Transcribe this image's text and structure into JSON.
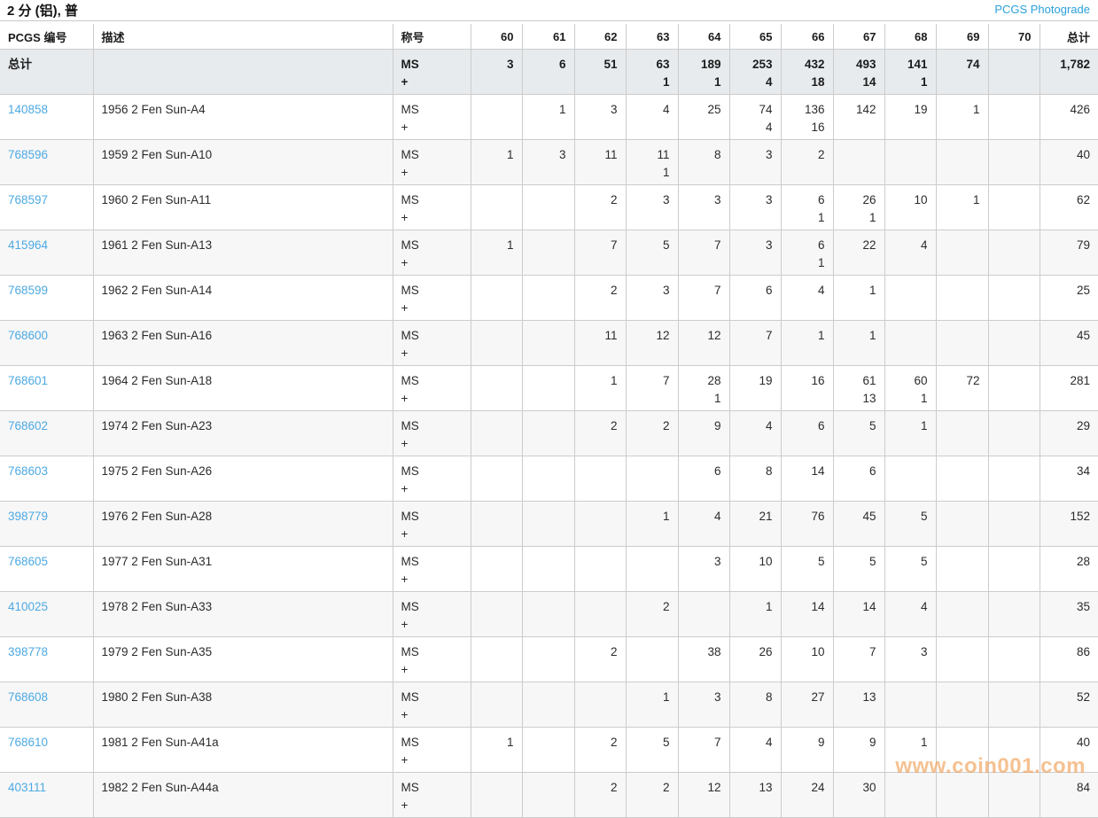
{
  "title": "2 分 (铝), 普",
  "photograde_link": "PCGS Photograde",
  "watermark": "www.coin001.com",
  "colors": {
    "link_blue": "#4da9e2",
    "photograde_blue": "#2ba0da",
    "totals_row_bg": "#e7ebee",
    "alt_row_bg": "#f7f7f8",
    "border": "#cccccc",
    "watermark_orange": "#f09c4e"
  },
  "table": {
    "headers": [
      "PCGS 编号",
      "描述",
      "称号",
      "60",
      "61",
      "62",
      "63",
      "64",
      "65",
      "66",
      "67",
      "68",
      "69",
      "70",
      "总计"
    ],
    "grade_labels": [
      "60",
      "61",
      "62",
      "63",
      "64",
      "65",
      "66",
      "67",
      "68",
      "69",
      "70",
      "total"
    ],
    "totals": {
      "label": "总计",
      "designation_lines": [
        "MS",
        "+"
      ],
      "ms": [
        "3",
        "6",
        "51",
        "63",
        "189",
        "253",
        "432",
        "493",
        "141",
        "74",
        "",
        "1,782"
      ],
      "plus": [
        "",
        "",
        "",
        "1",
        "1",
        "4",
        "18",
        "14",
        "1",
        "",
        "",
        ""
      ]
    },
    "rows": [
      {
        "pcgs_no": "140858",
        "desc": "1956 2 Fen Sun-A4",
        "designation_lines": [
          "MS",
          "+"
        ],
        "ms": [
          "",
          "1",
          "3",
          "4",
          "25",
          "74",
          "136",
          "142",
          "19",
          "1",
          "",
          "426"
        ],
        "plus": [
          "",
          "",
          "",
          "",
          "",
          "4",
          "16",
          "",
          "",
          "",
          "",
          ""
        ]
      },
      {
        "pcgs_no": "768596",
        "desc": "1959 2 Fen Sun-A10",
        "designation_lines": [
          "MS",
          "+"
        ],
        "ms": [
          "1",
          "3",
          "11",
          "11",
          "8",
          "3",
          "2",
          "",
          "",
          "",
          "",
          "40"
        ],
        "plus": [
          "",
          "",
          "",
          "1",
          "",
          "",
          "",
          "",
          "",
          "",
          "",
          ""
        ]
      },
      {
        "pcgs_no": "768597",
        "desc": "1960 2 Fen Sun-A11",
        "designation_lines": [
          "MS",
          "+"
        ],
        "ms": [
          "",
          "",
          "2",
          "3",
          "3",
          "3",
          "6",
          "26",
          "10",
          "1",
          "",
          "62"
        ],
        "plus": [
          "",
          "",
          "",
          "",
          "",
          "",
          "1",
          "1",
          "",
          "",
          "",
          ""
        ]
      },
      {
        "pcgs_no": "415964",
        "desc": "1961 2 Fen Sun-A13",
        "designation_lines": [
          "MS",
          "+"
        ],
        "ms": [
          "1",
          "",
          "7",
          "5",
          "7",
          "3",
          "6",
          "22",
          "4",
          "",
          "",
          "79"
        ],
        "plus": [
          "",
          "",
          "",
          "",
          "",
          "",
          "1",
          "",
          "",
          "",
          "",
          ""
        ]
      },
      {
        "pcgs_no": "768599",
        "desc": "1962 2 Fen Sun-A14",
        "designation_lines": [
          "MS",
          "+"
        ],
        "ms": [
          "",
          "",
          "2",
          "3",
          "7",
          "6",
          "4",
          "1",
          "",
          "",
          "",
          "25"
        ],
        "plus": [
          "",
          "",
          "",
          "",
          "",
          "",
          "",
          "",
          "",
          "",
          "",
          ""
        ]
      },
      {
        "pcgs_no": "768600",
        "desc": "1963 2 Fen Sun-A16",
        "designation_lines": [
          "MS",
          "+"
        ],
        "ms": [
          "",
          "",
          "11",
          "12",
          "12",
          "7",
          "1",
          "1",
          "",
          "",
          "",
          "45"
        ],
        "plus": [
          "",
          "",
          "",
          "",
          "",
          "",
          "",
          "",
          "",
          "",
          "",
          ""
        ]
      },
      {
        "pcgs_no": "768601",
        "desc": "1964 2 Fen Sun-A18",
        "designation_lines": [
          "MS",
          "+"
        ],
        "ms": [
          "",
          "",
          "1",
          "7",
          "28",
          "19",
          "16",
          "61",
          "60",
          "72",
          "",
          "281"
        ],
        "plus": [
          "",
          "",
          "",
          "",
          "1",
          "",
          "",
          "13",
          "1",
          "",
          "",
          ""
        ]
      },
      {
        "pcgs_no": "768602",
        "desc": "1974 2 Fen Sun-A23",
        "designation_lines": [
          "MS",
          "+"
        ],
        "ms": [
          "",
          "",
          "2",
          "2",
          "9",
          "4",
          "6",
          "5",
          "1",
          "",
          "",
          "29"
        ],
        "plus": [
          "",
          "",
          "",
          "",
          "",
          "",
          "",
          "",
          "",
          "",
          "",
          ""
        ]
      },
      {
        "pcgs_no": "768603",
        "desc": "1975 2 Fen Sun-A26",
        "designation_lines": [
          "MS",
          "+"
        ],
        "ms": [
          "",
          "",
          "",
          "",
          "6",
          "8",
          "14",
          "6",
          "",
          "",
          "",
          "34"
        ],
        "plus": [
          "",
          "",
          "",
          "",
          "",
          "",
          "",
          "",
          "",
          "",
          "",
          ""
        ]
      },
      {
        "pcgs_no": "398779",
        "desc": "1976 2 Fen Sun-A28",
        "designation_lines": [
          "MS",
          "+"
        ],
        "ms": [
          "",
          "",
          "",
          "1",
          "4",
          "21",
          "76",
          "45",
          "5",
          "",
          "",
          "152"
        ],
        "plus": [
          "",
          "",
          "",
          "",
          "",
          "",
          "",
          "",
          "",
          "",
          "",
          ""
        ]
      },
      {
        "pcgs_no": "768605",
        "desc": "1977 2 Fen Sun-A31",
        "designation_lines": [
          "MS",
          "+"
        ],
        "ms": [
          "",
          "",
          "",
          "",
          "3",
          "10",
          "5",
          "5",
          "5",
          "",
          "",
          "28"
        ],
        "plus": [
          "",
          "",
          "",
          "",
          "",
          "",
          "",
          "",
          "",
          "",
          "",
          ""
        ]
      },
      {
        "pcgs_no": "410025",
        "desc": "1978 2 Fen Sun-A33",
        "designation_lines": [
          "MS",
          "+"
        ],
        "ms": [
          "",
          "",
          "",
          "2",
          "",
          "1",
          "14",
          "14",
          "4",
          "",
          "",
          "35"
        ],
        "plus": [
          "",
          "",
          "",
          "",
          "",
          "",
          "",
          "",
          "",
          "",
          "",
          ""
        ]
      },
      {
        "pcgs_no": "398778",
        "desc": "1979 2 Fen Sun-A35",
        "designation_lines": [
          "MS",
          "+"
        ],
        "ms": [
          "",
          "",
          "2",
          "",
          "38",
          "26",
          "10",
          "7",
          "3",
          "",
          "",
          "86"
        ],
        "plus": [
          "",
          "",
          "",
          "",
          "",
          "",
          "",
          "",
          "",
          "",
          "",
          ""
        ]
      },
      {
        "pcgs_no": "768608",
        "desc": "1980 2 Fen Sun-A38",
        "designation_lines": [
          "MS",
          "+"
        ],
        "ms": [
          "",
          "",
          "",
          "1",
          "3",
          "8",
          "27",
          "13",
          "",
          "",
          "",
          "52"
        ],
        "plus": [
          "",
          "",
          "",
          "",
          "",
          "",
          "",
          "",
          "",
          "",
          "",
          ""
        ]
      },
      {
        "pcgs_no": "768610",
        "desc": "1981 2 Fen Sun-A41a",
        "designation_lines": [
          "MS",
          "+"
        ],
        "ms": [
          "1",
          "",
          "2",
          "5",
          "7",
          "4",
          "9",
          "9",
          "1",
          "",
          "",
          "40"
        ],
        "plus": [
          "",
          "",
          "",
          "",
          "",
          "",
          "",
          "",
          "",
          "",
          "",
          ""
        ]
      },
      {
        "pcgs_no": "403111",
        "desc": "1982 2 Fen Sun-A44a",
        "designation_lines": [
          "MS",
          "+"
        ],
        "ms": [
          "",
          "",
          "2",
          "2",
          "12",
          "13",
          "24",
          "30",
          "",
          "",
          "",
          "84"
        ],
        "plus": [
          "",
          "",
          "",
          "",
          "",
          "",
          "",
          "",
          "",
          "",
          "",
          ""
        ]
      }
    ]
  }
}
